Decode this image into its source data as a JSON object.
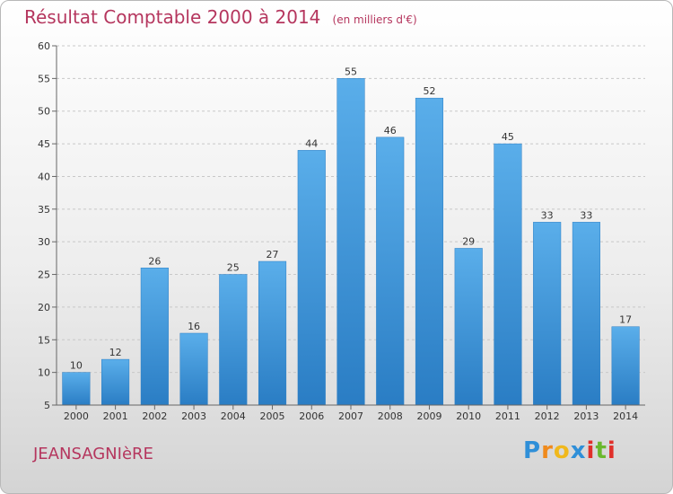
{
  "header": {
    "title": "Résultat Comptable 2000 à 2014",
    "subtitle": "(en milliers d'€)"
  },
  "footer": {
    "town": "JEANSAGNIèRE",
    "logo_letters": [
      "P",
      "r",
      "o",
      "x",
      "i",
      "t",
      "i"
    ],
    "logo_colors": [
      "#2f8fd8",
      "#f08a1c",
      "#f0b81c",
      "#2f8fd8",
      "#e0302a",
      "#6ab82e",
      "#e0302a"
    ]
  },
  "chart_data": {
    "type": "bar",
    "title": "Résultat Comptable 2000 à 2014",
    "ylabel": "en milliers d'€",
    "xlabel": "",
    "categories": [
      "2000",
      "2001",
      "2002",
      "2003",
      "2004",
      "2005",
      "2006",
      "2007",
      "2008",
      "2009",
      "2010",
      "2011",
      "2012",
      "2013",
      "2014"
    ],
    "values": [
      10,
      12,
      26,
      16,
      25,
      27,
      44,
      55,
      46,
      52,
      29,
      45,
      33,
      33,
      17
    ],
    "ylim": [
      5,
      60
    ],
    "yticks": [
      5,
      10,
      15,
      20,
      25,
      30,
      35,
      40,
      45,
      50,
      55,
      60
    ],
    "grid": true,
    "bar_color": "#3e97dc",
    "bar_color_light": "#5aaeea",
    "bar_color_dark": "#2a7dc4"
  }
}
